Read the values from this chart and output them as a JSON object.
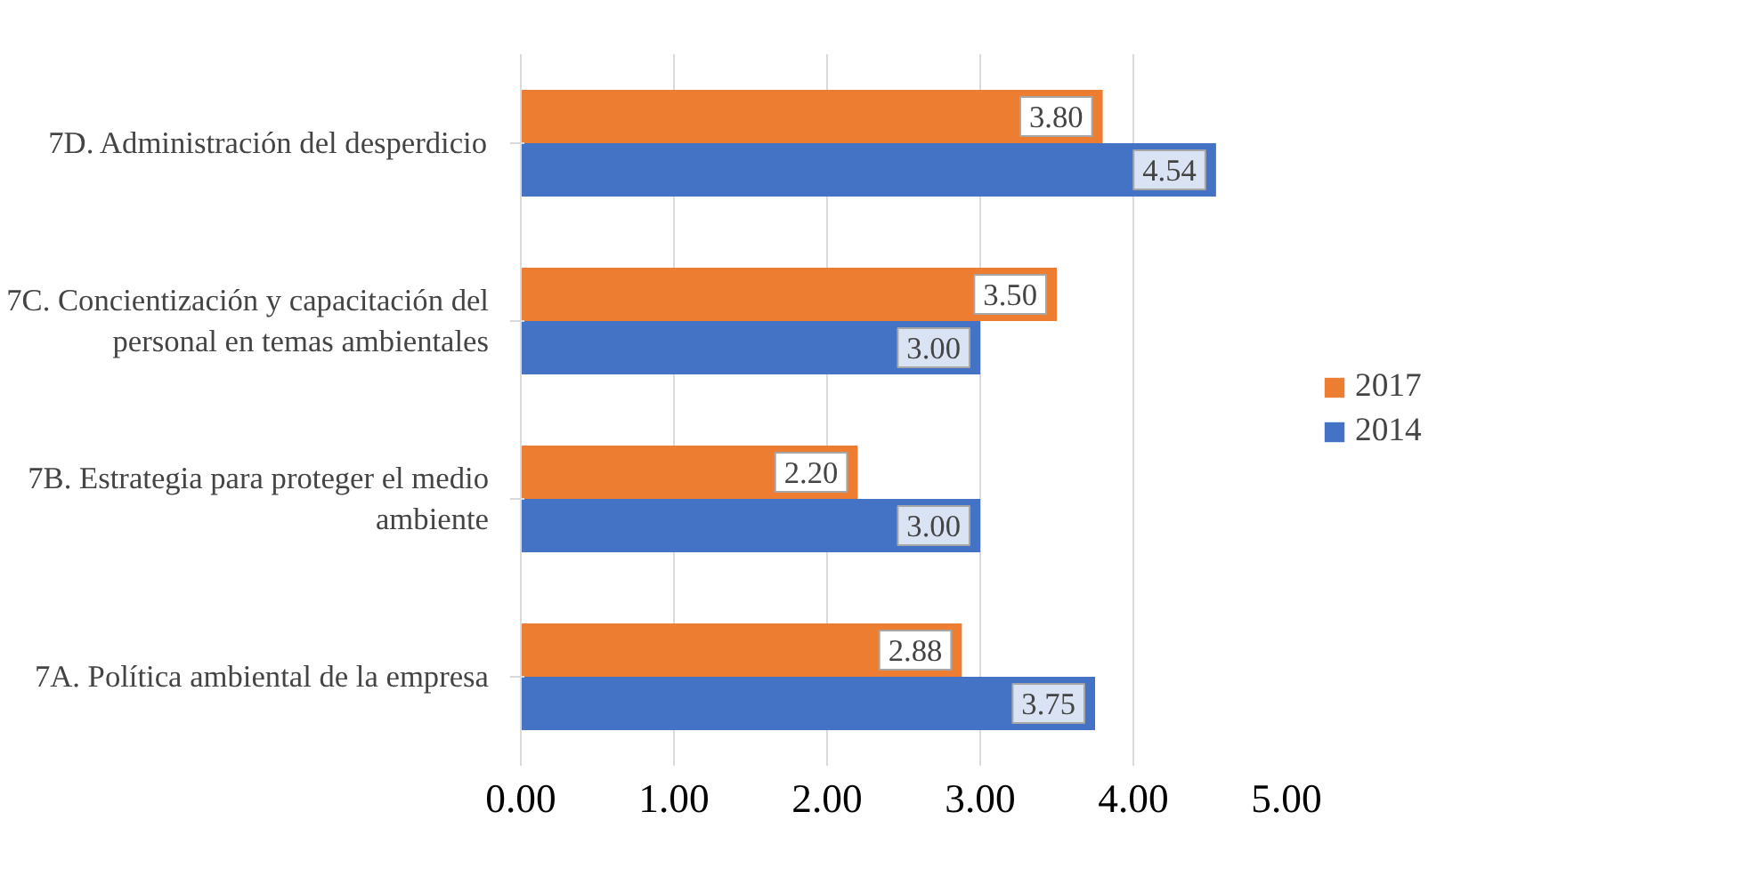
{
  "chart_data": {
    "type": "bar",
    "orientation": "horizontal",
    "categories": [
      "7D. Administración del desperdicio",
      "7C. Concientización y capacitación del personal en temas ambientales",
      "7B. Estrategia para proteger el medio ambiente",
      "7A. Política ambiental de la empresa"
    ],
    "series": [
      {
        "name": "2017",
        "color": "#ed7d31",
        "values": [
          3.8,
          3.5,
          2.2,
          2.88
        ],
        "value_labels": [
          "3.80",
          "3.50",
          "2.20",
          "2.88"
        ]
      },
      {
        "name": "2014",
        "color": "#4472c4",
        "values": [
          4.54,
          3.0,
          3.0,
          3.75
        ],
        "value_labels": [
          "4.54",
          "3.00",
          "3.00",
          "3.75"
        ]
      }
    ],
    "xlim": [
      0,
      5
    ],
    "xticks": [
      {
        "value": 0,
        "label": "0.00"
      },
      {
        "value": 1,
        "label": "1.00"
      },
      {
        "value": 2,
        "label": "2.00"
      },
      {
        "value": 3,
        "label": "3.00"
      },
      {
        "value": 4,
        "label": "4.00"
      },
      {
        "value": 5,
        "label": "5.00"
      }
    ],
    "grid": "x",
    "legend": "right"
  }
}
